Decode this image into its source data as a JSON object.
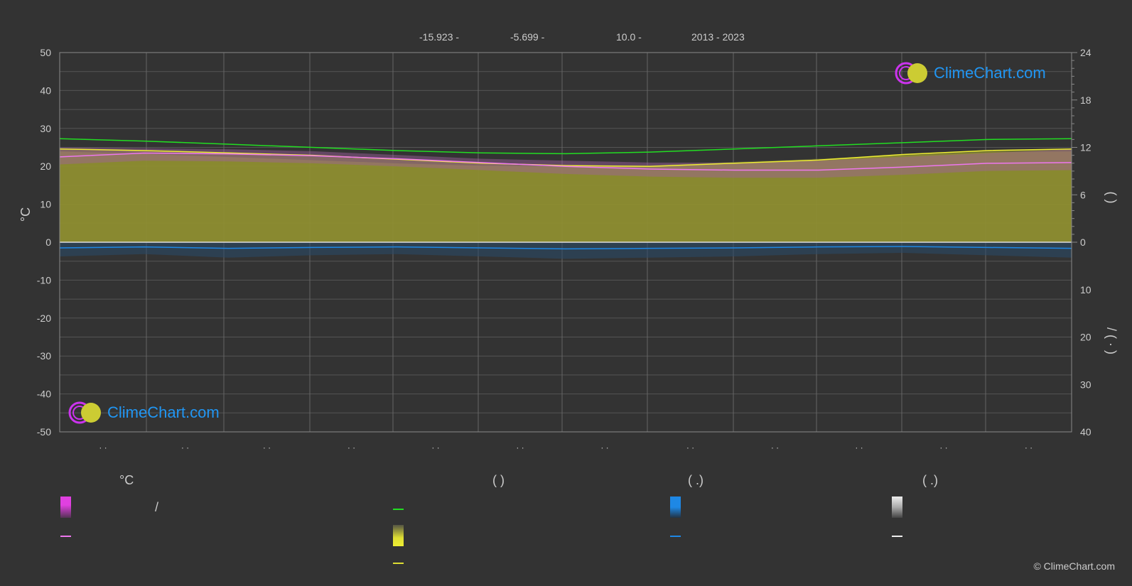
{
  "header": {
    "lat": "-15.923 -",
    "lon": "-5.699 -",
    "elev": "10.0 -",
    "years": "2013 - 2023"
  },
  "logo": {
    "text": "ClimeChart.com"
  },
  "copyright": "© ClimeChart.com",
  "legend": {
    "col1_title": "°C",
    "col2_title": "(          )",
    "col3_title": "(   .)",
    "col4_title": "(   .)",
    "slash": "/",
    "colors": {
      "magenta": "#e040e0",
      "green": "#22dd22",
      "yellow": "#dddd33",
      "blue": "#1e88e5",
      "white": "#eeeeee"
    }
  },
  "chart_data": {
    "type": "area",
    "ylabel_left": "°C",
    "ylim_left": [
      -50,
      50
    ],
    "yticks_left": [
      50,
      40,
      30,
      20,
      10,
      0,
      -10,
      -20,
      -30,
      -40,
      -50
    ],
    "yticks_right_top": [
      24,
      18,
      12,
      6,
      0
    ],
    "yticks_right_bottom": [
      10,
      20,
      30,
      40
    ],
    "right_label_top": "(     )",
    "right_label_bottom": "/    (  ·  )",
    "x_tick_labels": [
      "· ·",
      "· ·",
      "· ·",
      "· ·",
      "· ·",
      "· ·",
      "· ·",
      "· ·",
      "· ·",
      "· ·",
      "· ·",
      "· ·"
    ],
    "x": [
      0,
      1,
      2,
      3,
      4,
      5,
      6,
      7,
      8,
      9,
      10,
      11,
      12
    ],
    "series": [
      {
        "key": "daylight_hours",
        "color": "#22dd22",
        "values": [
          13.1,
          12.8,
          12.4,
          12.0,
          11.6,
          11.3,
          11.2,
          11.4,
          11.8,
          12.2,
          12.6,
          13.0,
          13.1
        ]
      },
      {
        "key": "sunshine_hours",
        "color": "#dddd33",
        "values": [
          11.8,
          11.6,
          11.3,
          11.0,
          10.5,
          10.0,
          9.7,
          9.6,
          10.0,
          10.4,
          11.1,
          11.6,
          11.8
        ]
      },
      {
        "key": "avg_temp",
        "color": "#ee77ee",
        "values": [
          22.5,
          23.5,
          23.3,
          22.8,
          22.0,
          21.0,
          20.0,
          19.3,
          19.0,
          19.0,
          19.8,
          20.8,
          21.0
        ]
      },
      {
        "key": "max_temp_band",
        "color": "#e040e0",
        "values": [
          25.0,
          24.8,
          24.5,
          24.0,
          23.0,
          22.0,
          21.5,
          21.0,
          21.0,
          21.5,
          22.5,
          23.5,
          24.5
        ]
      },
      {
        "key": "avg_precip",
        "color": "#1e88e5",
        "values": [
          1.2,
          1.0,
          1.3,
          1.1,
          1.0,
          1.2,
          1.4,
          1.3,
          1.2,
          1.0,
          0.9,
          1.1,
          1.3
        ]
      }
    ]
  }
}
